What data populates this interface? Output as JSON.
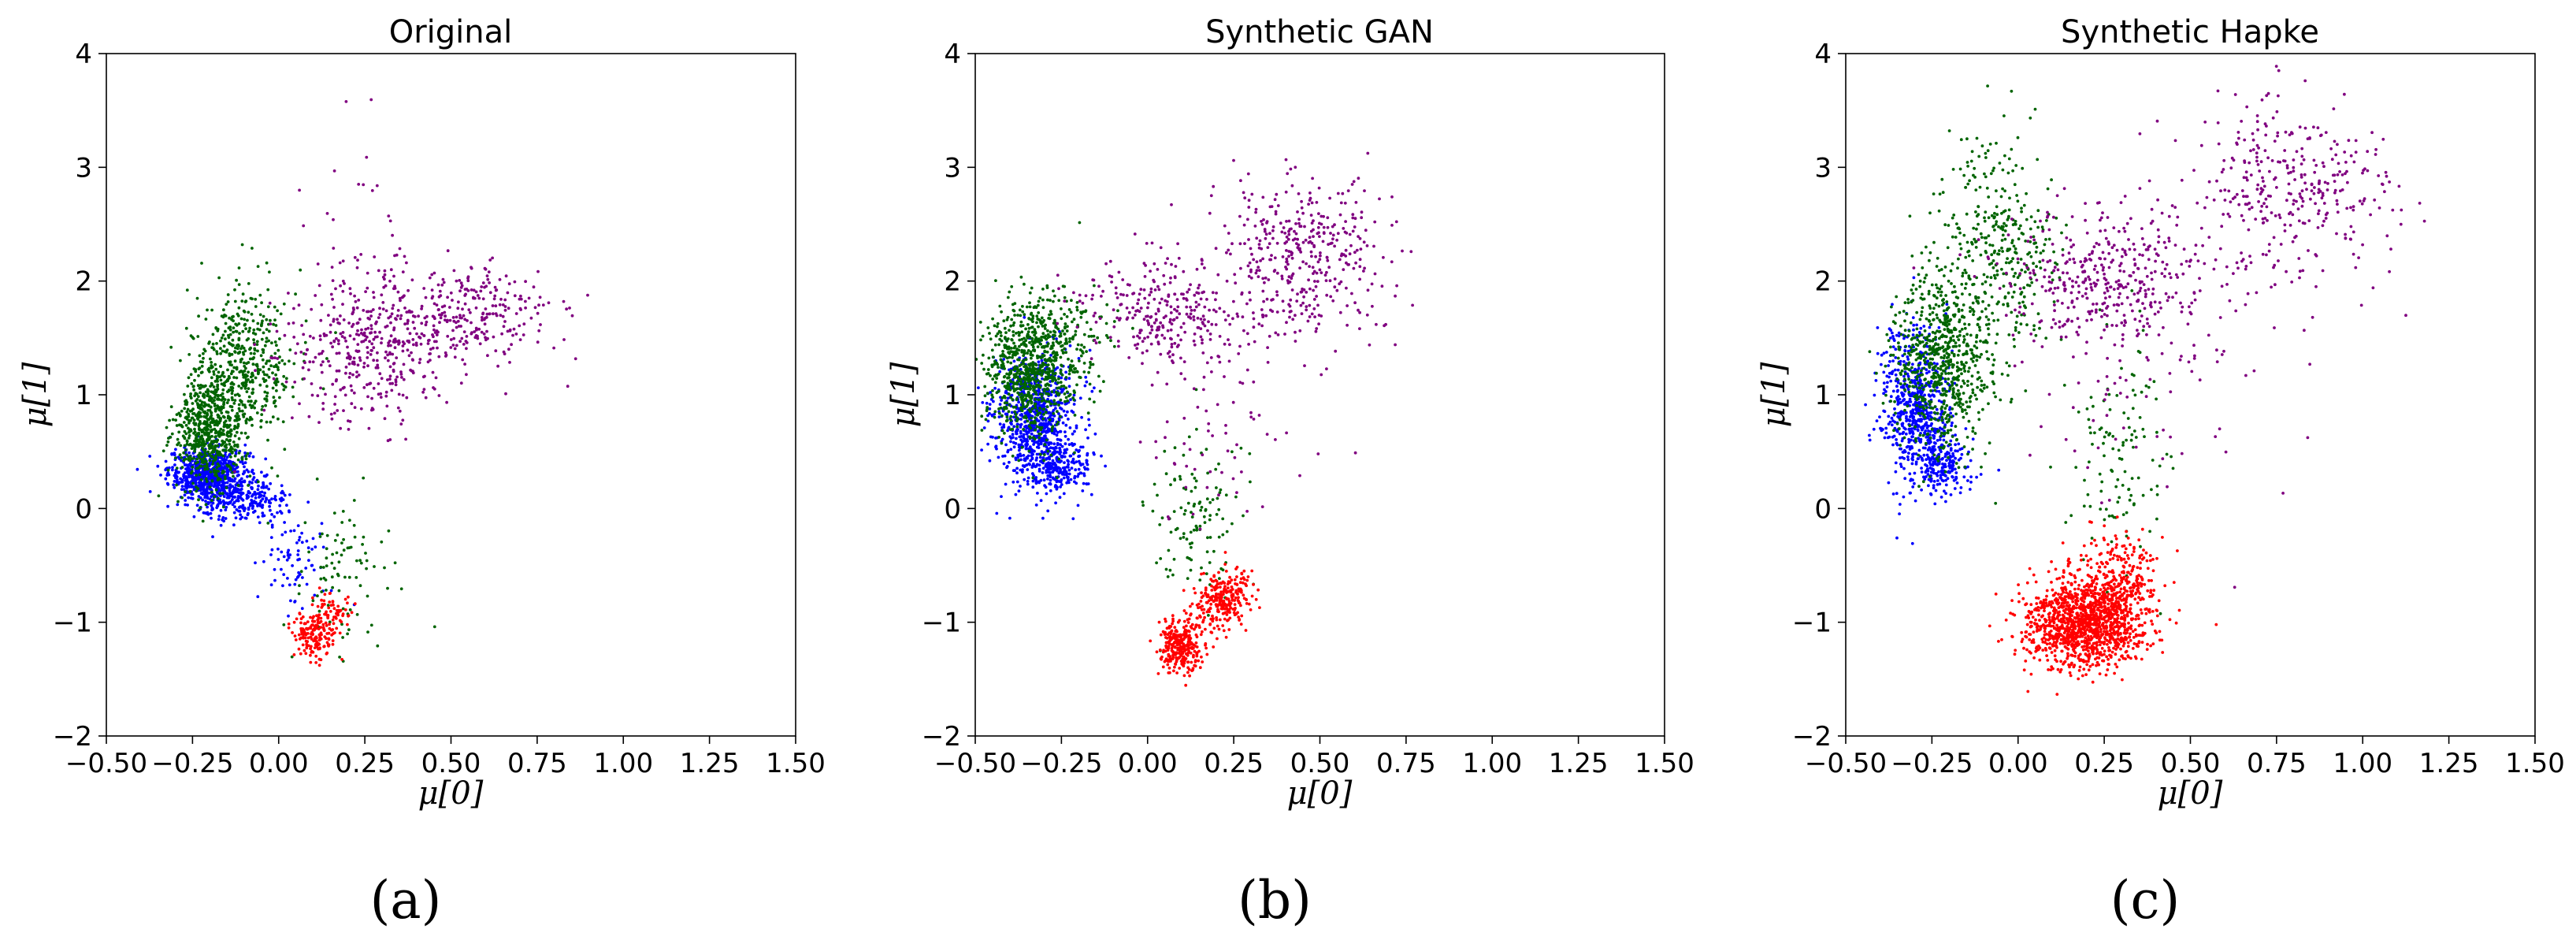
{
  "chart_data": [
    {
      "type": "scatter",
      "title": "Original",
      "caption": "(a)",
      "xlabel": "μ[0]",
      "ylabel": "μ[1]",
      "xlim": [
        -0.5,
        1.5
      ],
      "ylim": [
        -2,
        4
      ],
      "xticks": [
        "−0.50",
        "−0.25",
        "0.00",
        "0.25",
        "0.50",
        "0.75",
        "1.00",
        "1.25",
        "1.50"
      ],
      "yticks": [
        "−2",
        "−1",
        "0",
        "1",
        "2",
        "3",
        "4"
      ],
      "series": [
        {
          "name": "blue",
          "color": "#0000ff",
          "clusters": [
            {
              "cx": -0.2,
              "cy": 0.3,
              "sx": 0.06,
              "sy": 0.12,
              "n": 700
            },
            {
              "cx": -0.1,
              "cy": 0.05,
              "sx": 0.07,
              "sy": 0.1,
              "n": 220
            },
            {
              "cx": 0.05,
              "cy": -0.5,
              "sx": 0.05,
              "sy": 0.2,
              "n": 70
            }
          ]
        },
        {
          "name": "green",
          "color": "#006400",
          "clusters": [
            {
              "cx": -0.2,
              "cy": 0.7,
              "sx": 0.05,
              "sy": 0.25,
              "n": 650
            },
            {
              "cx": -0.1,
              "cy": 1.3,
              "sx": 0.07,
              "sy": 0.35,
              "n": 450
            },
            {
              "cx": 0.2,
              "cy": -0.5,
              "sx": 0.08,
              "sy": 0.4,
              "n": 90
            }
          ]
        },
        {
          "name": "purple",
          "color": "#800080",
          "clusters": [
            {
              "cx": 0.25,
              "cy": 1.4,
              "sx": 0.12,
              "sy": 0.35,
              "n": 400
            },
            {
              "cx": 0.55,
              "cy": 1.7,
              "sx": 0.12,
              "sy": 0.2,
              "n": 280
            },
            {
              "cx": 0.2,
              "cy": 2.7,
              "sx": 0.08,
              "sy": 0.4,
              "n": 20
            }
          ]
        },
        {
          "name": "red",
          "color": "#ff0000",
          "clusters": [
            {
              "cx": 0.1,
              "cy": -1.1,
              "sx": 0.03,
              "sy": 0.1,
              "n": 160
            },
            {
              "cx": 0.16,
              "cy": -0.9,
              "sx": 0.03,
              "sy": 0.08,
              "n": 60
            }
          ]
        }
      ]
    },
    {
      "type": "scatter",
      "title": "Synthetic GAN",
      "caption": "(b)",
      "xlabel": "μ[0]",
      "ylabel": "μ[1]",
      "xlim": [
        -0.5,
        1.5
      ],
      "ylim": [
        -2,
        4
      ],
      "xticks": [
        "−0.50",
        "−0.25",
        "0.00",
        "0.25",
        "0.50",
        "0.75",
        "1.00",
        "1.25",
        "1.50"
      ],
      "yticks": [
        "−2",
        "−1",
        "0",
        "1",
        "2",
        "3",
        "4"
      ],
      "series": [
        {
          "name": "blue",
          "color": "#0000ff",
          "clusters": [
            {
              "cx": -0.33,
              "cy": 0.8,
              "sx": 0.06,
              "sy": 0.28,
              "n": 800
            },
            {
              "cx": -0.25,
              "cy": 0.35,
              "sx": 0.05,
              "sy": 0.12,
              "n": 200
            }
          ]
        },
        {
          "name": "green",
          "color": "#006400",
          "clusters": [
            {
              "cx": -0.35,
              "cy": 1.2,
              "sx": 0.06,
              "sy": 0.3,
              "n": 700
            },
            {
              "cx": -0.25,
              "cy": 1.5,
              "sx": 0.07,
              "sy": 0.25,
              "n": 200
            },
            {
              "cx": 0.15,
              "cy": -0.1,
              "sx": 0.07,
              "sy": 0.4,
              "n": 120
            }
          ]
        },
        {
          "name": "purple",
          "color": "#800080",
          "clusters": [
            {
              "cx": 0.05,
              "cy": 1.7,
              "sx": 0.12,
              "sy": 0.25,
              "n": 300
            },
            {
              "cx": 0.45,
              "cy": 2.2,
              "sx": 0.12,
              "sy": 0.35,
              "n": 400
            },
            {
              "cx": 0.2,
              "cy": 0.6,
              "sx": 0.12,
              "sy": 0.4,
              "n": 60
            }
          ]
        },
        {
          "name": "red",
          "color": "#ff0000",
          "clusters": [
            {
              "cx": 0.1,
              "cy": -1.2,
              "sx": 0.03,
              "sy": 0.12,
              "n": 300
            },
            {
              "cx": 0.22,
              "cy": -0.8,
              "sx": 0.04,
              "sy": 0.12,
              "n": 250
            }
          ]
        }
      ]
    },
    {
      "type": "scatter",
      "title": "Synthetic Hapke",
      "caption": "(c)",
      "xlabel": "μ[0]",
      "ylabel": "μ[1]",
      "xlim": [
        -0.5,
        1.5
      ],
      "ylim": [
        -2,
        4
      ],
      "xticks": [
        "−0.50",
        "−0.25",
        "0.00",
        "0.25",
        "0.50",
        "0.75",
        "1.00",
        "1.25",
        "1.50"
      ],
      "yticks": [
        "−2",
        "−1",
        "0",
        "1",
        "2",
        "3",
        "4"
      ],
      "series": [
        {
          "name": "blue",
          "color": "#0000ff",
          "clusters": [
            {
              "cx": -0.3,
              "cy": 0.9,
              "sx": 0.05,
              "sy": 0.35,
              "n": 600
            },
            {
              "cx": -0.22,
              "cy": 0.4,
              "sx": 0.04,
              "sy": 0.15,
              "n": 200
            }
          ]
        },
        {
          "name": "green",
          "color": "#006400",
          "clusters": [
            {
              "cx": -0.22,
              "cy": 1.3,
              "sx": 0.07,
              "sy": 0.4,
              "n": 700
            },
            {
              "cx": -0.05,
              "cy": 2.3,
              "sx": 0.08,
              "sy": 0.5,
              "n": 350
            },
            {
              "cx": 0.3,
              "cy": 0.4,
              "sx": 0.07,
              "sy": 0.6,
              "n": 120
            }
          ]
        },
        {
          "name": "purple",
          "color": "#800080",
          "clusters": [
            {
              "cx": 0.25,
              "cy": 2.0,
              "sx": 0.15,
              "sy": 0.3,
              "n": 400
            },
            {
              "cx": 0.8,
              "cy": 2.8,
              "sx": 0.15,
              "sy": 0.4,
              "n": 350
            },
            {
              "cx": 0.4,
              "cy": 1.3,
              "sx": 0.2,
              "sy": 0.6,
              "n": 80
            }
          ]
        },
        {
          "name": "red",
          "color": "#ff0000",
          "clusters": [
            {
              "cx": 0.2,
              "cy": -1.0,
              "sx": 0.09,
              "sy": 0.2,
              "n": 1300
            },
            {
              "cx": 0.3,
              "cy": -0.6,
              "sx": 0.06,
              "sy": 0.2,
              "n": 200
            }
          ]
        }
      ]
    }
  ]
}
